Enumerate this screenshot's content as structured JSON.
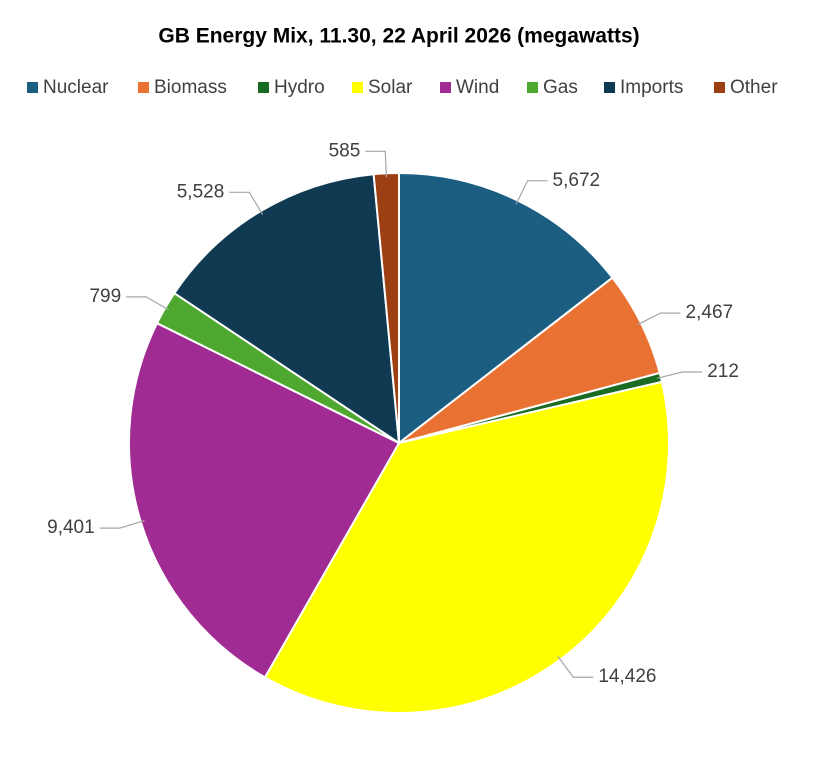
{
  "chart_data": {
    "type": "pie",
    "title": "GB Energy Mix, 11.30, 22 April 2026 (megawatts)",
    "categories": [
      "Nuclear",
      "Biomass",
      "Hydro",
      "Solar",
      "Wind",
      "Gas",
      "Imports",
      "Other"
    ],
    "values": [
      5672,
      2467,
      212,
      14426,
      9401,
      799,
      5528,
      585
    ],
    "value_labels": [
      "5,672",
      "2,467",
      "212",
      "14,426",
      "9,401",
      "799",
      "5,528",
      "585"
    ],
    "colors": [
      "#1b5e82",
      "#e97132",
      "#196b24",
      "#ffff00",
      "#a02b93",
      "#4ea72e",
      "#0f3a52",
      "#9c3f13"
    ],
    "legend": "top"
  }
}
